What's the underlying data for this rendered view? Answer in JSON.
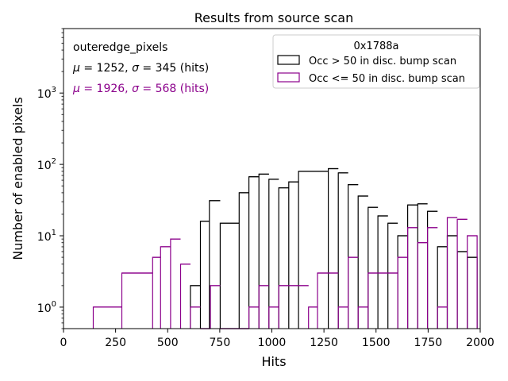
{
  "chart_data": {
    "type": "histogram",
    "title": "Results from source scan",
    "xlabel": "Hits",
    "ylabel": "Number of enabled pixels",
    "xlim": [
      0,
      2000
    ],
    "ylim": [
      0.5,
      8000
    ],
    "yscale": "log",
    "x_ticks": [
      0,
      250,
      500,
      750,
      1000,
      1250,
      1500,
      1750,
      2000
    ],
    "x_tick_labels": [
      "0",
      "250",
      "500",
      "750",
      "1000",
      "1250",
      "1500",
      "1750",
      "2000"
    ],
    "y_ticks": [
      1,
      10,
      100,
      1000
    ],
    "y_tick_base": "10",
    "y_tick_exponents": [
      "0",
      "1",
      "2",
      "3"
    ],
    "grid": false,
    "legend_position": "top-right",
    "legend_title": "0x1788a",
    "annotations": {
      "name": "outeredge_pixels",
      "stats_black": {
        "mu_label": "μ",
        "sigma_label": "σ",
        "text": " = 1252, ",
        "text2": " = 345 (hits)"
      },
      "stats_purple": {
        "mu_label": "μ",
        "sigma_label": "σ",
        "text": " = 1926, ",
        "text2": " = 568 (hits)"
      }
    },
    "bin_width": 47.6,
    "series": [
      {
        "name": "Occ > 50 in disc. bump scan",
        "color": "#000000",
        "bins": [
          {
            "x0": 609,
            "v": 2
          },
          {
            "x0": 657,
            "v": 16
          },
          {
            "x0": 700,
            "v": 31
          },
          {
            "x0": 752,
            "v": 15
          },
          {
            "x0": 843,
            "v": 40
          },
          {
            "x0": 890,
            "v": 67
          },
          {
            "x0": 938,
            "v": 73
          },
          {
            "x0": 986,
            "v": 62
          },
          {
            "x0": 1033,
            "v": 47
          },
          {
            "x0": 1081,
            "v": 57
          },
          {
            "x0": 1128,
            "v": 80
          },
          {
            "x0": 1271,
            "v": 87
          },
          {
            "x0": 1319,
            "v": 76
          },
          {
            "x0": 1366,
            "v": 52
          },
          {
            "x0": 1414,
            "v": 36
          },
          {
            "x0": 1462,
            "v": 25
          },
          {
            "x0": 1509,
            "v": 19
          },
          {
            "x0": 1557,
            "v": 15
          },
          {
            "x0": 1604,
            "v": 10
          },
          {
            "x0": 1652,
            "v": 27
          },
          {
            "x0": 1700,
            "v": 28
          },
          {
            "x0": 1747,
            "v": 22
          },
          {
            "x0": 1795,
            "v": 7
          },
          {
            "x0": 1842,
            "v": 10
          },
          {
            "x0": 1890,
            "v": 6
          },
          {
            "x0": 1938,
            "v": 5
          }
        ],
        "end_x": 1985
      },
      {
        "name": "Occ <= 50 in disc. bump scan",
        "color": "#8b008b",
        "bins": [
          {
            "x0": 143,
            "v": 1
          },
          {
            "x0": 280,
            "v": 3
          },
          {
            "x0": 428,
            "v": 5
          },
          {
            "x0": 466,
            "v": 7
          },
          {
            "x0": 514,
            "v": 9
          },
          {
            "x0": 562,
            "v": 4
          },
          {
            "x0": 609,
            "v": 1
          },
          {
            "x0": 657,
            "v": 0.5
          },
          {
            "x0": 705,
            "v": 2
          },
          {
            "x0": 752,
            "v": 0.5
          },
          {
            "x0": 890,
            "v": 1
          },
          {
            "x0": 938,
            "v": 2
          },
          {
            "x0": 986,
            "v": 1
          },
          {
            "x0": 1033,
            "v": 2
          },
          {
            "x0": 1176,
            "v": 1
          },
          {
            "x0": 1219,
            "v": 3
          },
          {
            "x0": 1319,
            "v": 1
          },
          {
            "x0": 1366,
            "v": 5
          },
          {
            "x0": 1414,
            "v": 1
          },
          {
            "x0": 1462,
            "v": 3
          },
          {
            "x0": 1604,
            "v": 5
          },
          {
            "x0": 1652,
            "v": 13
          },
          {
            "x0": 1700,
            "v": 8
          },
          {
            "x0": 1747,
            "v": 13
          },
          {
            "x0": 1795,
            "v": 1
          },
          {
            "x0": 1842,
            "v": 18
          },
          {
            "x0": 1890,
            "v": 17
          },
          {
            "x0": 1938,
            "v": 10
          }
        ],
        "end_x": 1985
      }
    ]
  }
}
